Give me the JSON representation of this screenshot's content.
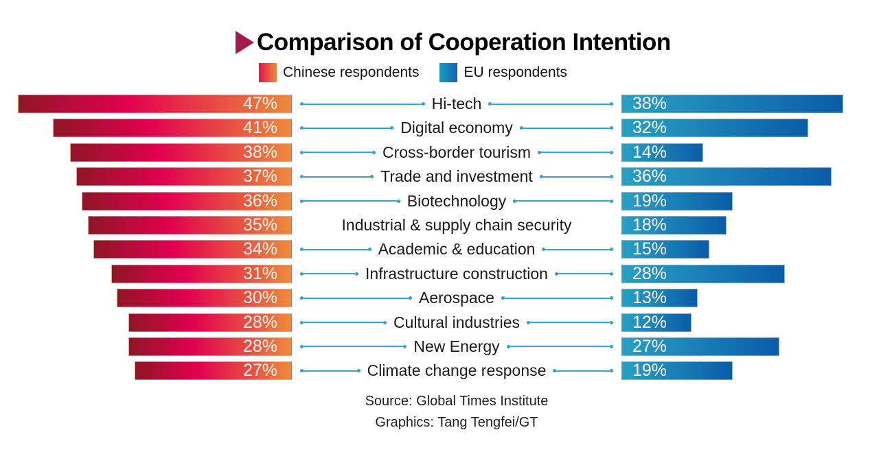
{
  "title": "Comparison of Cooperation Intention",
  "legend": {
    "chinese": "Chinese respondents",
    "eu": "EU respondents"
  },
  "footer": {
    "source": "Source: Global Times Institute",
    "graphics": "Graphics: Tang Tengfei/GT"
  },
  "colors": {
    "chinese_bar_gradient": [
      "#8f1626",
      "#e2004f",
      "#ee8b3b"
    ],
    "eu_bar_gradient": [
      "#29a0c4",
      "#0a5ca8"
    ],
    "connector_line": "#3aa5c6",
    "title_arrow": "#a31b4a",
    "value_text": "#fbf4ee",
    "label_text": "#1a1a1a"
  },
  "chart_data": {
    "type": "bar",
    "layout": "butterfly",
    "unit": "%",
    "xlim": [
      0,
      50
    ],
    "categories": [
      "Hi-tech",
      "Digital economy",
      "Cross-border tourism",
      "Trade and investment",
      "Biotechnology",
      "Industrial & supply chain security",
      "Academic & education",
      "Infrastructure construction",
      "Aerospace",
      "Cultural industries",
      "New Energy",
      "Climate change response"
    ],
    "series": [
      {
        "name": "Chinese respondents",
        "values": [
          47,
          41,
          38,
          37,
          36,
          35,
          34,
          31,
          30,
          28,
          28,
          27
        ]
      },
      {
        "name": "EU respondents",
        "values": [
          38,
          32,
          14,
          36,
          19,
          18,
          15,
          28,
          13,
          12,
          27,
          19
        ]
      }
    ],
    "rows": [
      {
        "label": "Hi-tech",
        "cn": 47,
        "cn_label": "47%",
        "eu": 38,
        "eu_label": "38%",
        "connectors": true
      },
      {
        "label": "Digital economy",
        "cn": 41,
        "cn_label": "41%",
        "eu": 32,
        "eu_label": "32%",
        "connectors": true
      },
      {
        "label": "Cross-border tourism",
        "cn": 38,
        "cn_label": "38%",
        "eu": 14,
        "eu_label": "14%",
        "connectors": true
      },
      {
        "label": "Trade and investment",
        "cn": 37,
        "cn_label": "37%",
        "eu": 36,
        "eu_label": "36%",
        "connectors": true
      },
      {
        "label": "Biotechnology",
        "cn": 36,
        "cn_label": "36%",
        "eu": 19,
        "eu_label": "19%",
        "connectors": true
      },
      {
        "label": "Industrial & supply chain security",
        "cn": 35,
        "cn_label": "35%",
        "eu": 18,
        "eu_label": "18%",
        "connectors": false
      },
      {
        "label": "Academic & education",
        "cn": 34,
        "cn_label": "34%",
        "eu": 15,
        "eu_label": "15%",
        "connectors": true
      },
      {
        "label": "Infrastructure construction",
        "cn": 31,
        "cn_label": "31%",
        "eu": 28,
        "eu_label": "28%",
        "connectors": true
      },
      {
        "label": "Aerospace",
        "cn": 30,
        "cn_label": "30%",
        "eu": 13,
        "eu_label": "13%",
        "connectors": true
      },
      {
        "label": "Cultural industries",
        "cn": 28,
        "cn_label": "28%",
        "eu": 12,
        "eu_label": "12%",
        "connectors": true
      },
      {
        "label": "New Energy",
        "cn": 28,
        "cn_label": "28%",
        "eu": 27,
        "eu_label": "27%",
        "connectors": true
      },
      {
        "label": "Climate change response",
        "cn": 27,
        "cn_label": "27%",
        "eu": 19,
        "eu_label": "19%",
        "connectors": true
      }
    ]
  }
}
